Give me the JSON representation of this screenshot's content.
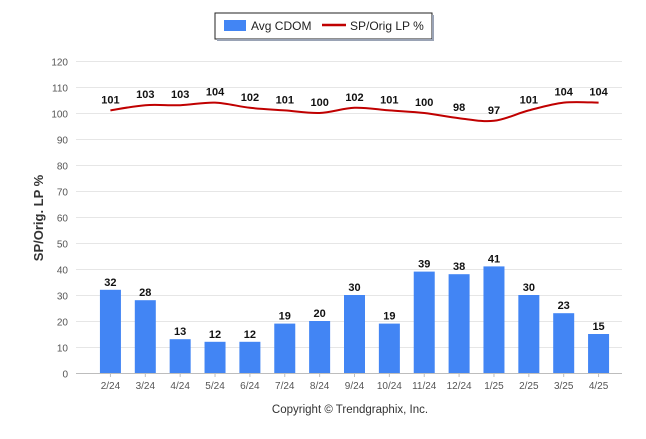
{
  "chart_data": {
    "type": "bar",
    "categories": [
      "2/24",
      "3/24",
      "4/24",
      "5/24",
      "6/24",
      "7/24",
      "8/24",
      "9/24",
      "10/24",
      "11/24",
      "12/24",
      "1/25",
      "2/25",
      "3/25",
      "4/25"
    ],
    "series": [
      {
        "name": "Avg CDOM",
        "kind": "bar",
        "color": "#4285f4",
        "values": [
          32,
          28,
          13,
          12,
          12,
          19,
          20,
          30,
          19,
          39,
          38,
          41,
          30,
          23,
          15
        ]
      },
      {
        "name": "SP/Orig LP %",
        "kind": "line",
        "color": "#c00000",
        "values": [
          101,
          103,
          103,
          104,
          102,
          101,
          100,
          102,
          101,
          100,
          98,
          97,
          101,
          104,
          104
        ]
      }
    ],
    "ylabel": "SP/Orig. LP %",
    "ylim": [
      0,
      120
    ],
    "yticks": [
      0,
      10,
      20,
      30,
      40,
      50,
      60,
      70,
      80,
      90,
      100,
      110,
      120
    ],
    "grid": true,
    "legend_position": "top-center",
    "data_labels": true
  },
  "footer": {
    "copyright": "Copyright © Trendgraphix, Inc."
  }
}
